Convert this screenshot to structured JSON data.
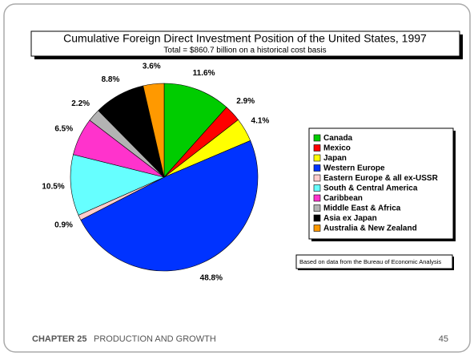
{
  "chart_data": {
    "type": "pie",
    "title": "Cumulative Foreign Direct Investment Position of the United States, 1997",
    "subtitle": "Total = $860.7 billion on a historical cost basis",
    "note": "Based on data from the Bureau of Economic Analysis",
    "categories": [
      "Canada",
      "Mexico",
      "Japan",
      "Western Europe",
      "Eastern Europe & all ex-USSR",
      "South & Central America",
      "Caribbean",
      "Middle East & Africa",
      "Asia ex Japan",
      "Australia & New Zealand"
    ],
    "values": [
      11.6,
      2.9,
      4.1,
      48.8,
      0.9,
      10.5,
      6.5,
      2.2,
      8.8,
      3.6
    ],
    "value_labels": [
      "11.6%",
      "2.9%",
      "4.1%",
      "48.8%",
      "0.9%",
      "10.5%",
      "6.5%",
      "2.2%",
      "8.8%",
      "3.6%"
    ],
    "colors": [
      "#00cc00",
      "#ff0000",
      "#ffff00",
      "#0033ff",
      "#ffcccc",
      "#66ffff",
      "#ff33cc",
      "#b3b3b3",
      "#000000",
      "#ff9900"
    ],
    "legend": "right"
  },
  "footer": {
    "chapter": "CHAPTER 25",
    "title": "PRODUCTION AND GROWTH",
    "page": "45"
  }
}
